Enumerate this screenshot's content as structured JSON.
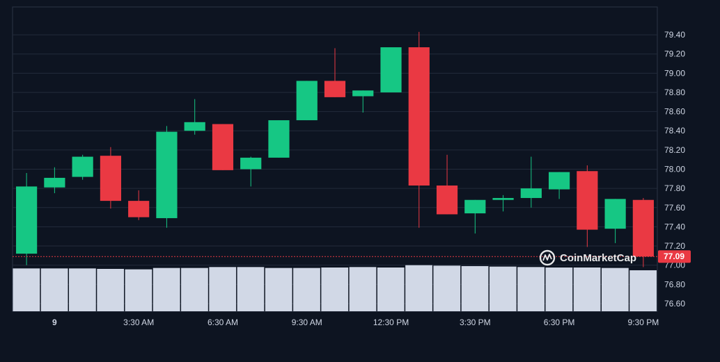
{
  "chart_data": {
    "type": "candlestick",
    "x_tick_labels": [
      "9",
      "3:30 AM",
      "6:30 AM",
      "9:30 AM",
      "12:30 PM",
      "3:30 PM",
      "6:30 PM",
      "9:30 PM"
    ],
    "y_tick_labels": [
      "76.60",
      "76.80",
      "77.00",
      "77.20",
      "77.40",
      "77.60",
      "77.80",
      "78.00",
      "78.20",
      "78.40",
      "78.60",
      "78.80",
      "79.00",
      "79.20",
      "79.40"
    ],
    "ylim": [
      76.52,
      79.69
    ],
    "grid": true,
    "last_price": "77.09",
    "watermark": "CoinMarketCap",
    "colors": {
      "up": "#16c784",
      "down": "#ea3943",
      "volume": "#d1d8e6",
      "background": "#0d1421",
      "grid": "#232b3b"
    },
    "candles": [
      {
        "open": 77.12,
        "high": 77.96,
        "low": 77.0,
        "close": 77.82
      },
      {
        "open": 77.81,
        "high": 78.02,
        "low": 77.75,
        "close": 77.91
      },
      {
        "open": 77.92,
        "high": 78.15,
        "low": 77.89,
        "close": 78.13
      },
      {
        "open": 78.14,
        "high": 78.23,
        "low": 77.59,
        "close": 77.67
      },
      {
        "open": 77.67,
        "high": 77.78,
        "low": 77.47,
        "close": 77.5
      },
      {
        "open": 77.49,
        "high": 78.45,
        "low": 77.39,
        "close": 78.39
      },
      {
        "open": 78.4,
        "high": 78.73,
        "low": 78.36,
        "close": 78.49
      },
      {
        "open": 78.47,
        "high": 78.47,
        "low": 77.99,
        "close": 77.99
      },
      {
        "open": 78.0,
        "high": 78.13,
        "low": 77.82,
        "close": 78.12
      },
      {
        "open": 78.12,
        "high": 78.51,
        "low": 78.12,
        "close": 78.51
      },
      {
        "open": 78.51,
        "high": 78.92,
        "low": 78.51,
        "close": 78.92
      },
      {
        "open": 78.92,
        "high": 79.26,
        "low": 78.75,
        "close": 78.75
      },
      {
        "open": 78.76,
        "high": 78.82,
        "low": 78.59,
        "close": 78.82
      },
      {
        "open": 78.8,
        "high": 79.27,
        "low": 78.8,
        "close": 79.27
      },
      {
        "open": 79.27,
        "high": 79.43,
        "low": 77.39,
        "close": 77.83
      },
      {
        "open": 77.83,
        "high": 78.15,
        "low": 77.53,
        "close": 77.53
      },
      {
        "open": 77.54,
        "high": 77.68,
        "low": 77.33,
        "close": 77.68
      },
      {
        "open": 77.68,
        "high": 77.73,
        "low": 77.56,
        "close": 77.7
      },
      {
        "open": 77.7,
        "high": 78.13,
        "low": 77.6,
        "close": 77.8
      },
      {
        "open": 77.79,
        "high": 77.97,
        "low": 77.69,
        "close": 77.97
      },
      {
        "open": 77.98,
        "high": 78.04,
        "low": 77.19,
        "close": 77.37
      },
      {
        "open": 77.38,
        "high": 77.69,
        "low": 77.23,
        "close": 77.69
      },
      {
        "open": 77.68,
        "high": 77.7,
        "low": 76.98,
        "close": 77.09
      }
    ],
    "volume_relative": [
      0.93,
      0.93,
      0.93,
      0.92,
      0.91,
      0.94,
      0.94,
      0.96,
      0.96,
      0.94,
      0.94,
      0.95,
      0.96,
      0.95,
      1.0,
      0.99,
      0.98,
      0.97,
      0.96,
      0.95,
      0.95,
      0.94,
      0.89
    ]
  }
}
